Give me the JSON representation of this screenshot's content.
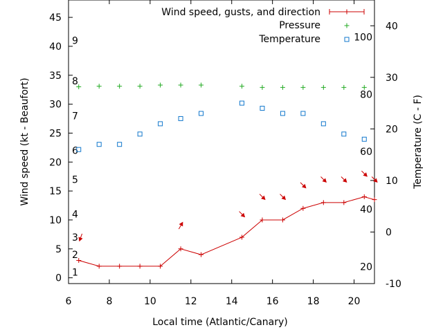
{
  "chart_data": {
    "type": "line",
    "xlabel": "Local time (Atlantic/Canary)",
    "ylabel": "Wind speed (kt - Beaufort)",
    "y2label": "Temperature (C - F)",
    "xlim": [
      6,
      21
    ],
    "ylim": [
      -1,
      48
    ],
    "y2lim": [
      -10,
      45
    ],
    "xticks": [
      6,
      8,
      10,
      12,
      14,
      16,
      18,
      20
    ],
    "yticks": [
      0,
      5,
      10,
      15,
      20,
      25,
      30,
      35,
      40,
      45
    ],
    "y2ticks": [
      -10,
      0,
      10,
      20,
      30,
      40
    ],
    "beaufort_labels": [
      {
        "label": "1",
        "y": 1
      },
      {
        "label": "2",
        "y": 4
      },
      {
        "label": "3",
        "y": 7
      },
      {
        "label": "4",
        "y": 11
      },
      {
        "label": "5",
        "y": 17
      },
      {
        "label": "6",
        "y": 22
      },
      {
        "label": "7",
        "y": 28
      },
      {
        "label": "8",
        "y": 34
      },
      {
        "label": "9",
        "y": 41
      }
    ],
    "fahrenheit_labels": [
      {
        "label": "20",
        "y2": -6.7
      },
      {
        "label": "40",
        "y2": 4.4
      },
      {
        "label": "60",
        "y2": 15.6
      },
      {
        "label": "80",
        "y2": 26.7
      },
      {
        "label": "100",
        "y2": 37.8
      }
    ],
    "legend_position": "top-right",
    "grid": false,
    "colors": {
      "wind": "#cc0000",
      "pressure": "#22aa22",
      "temperature": "#1177cc"
    },
    "series": [
      {
        "name": "Wind speed, gusts, and direction",
        "x": [
          6.5,
          7.5,
          8.5,
          9.5,
          10.5,
          11.5,
          12.5,
          14.5,
          15.5,
          16.5,
          17.5,
          18.5,
          19.5,
          20.5,
          21
        ],
        "values": [
          3,
          2,
          2,
          2,
          2,
          5,
          4,
          7,
          10,
          10,
          12,
          13,
          13,
          14,
          13.5
        ]
      },
      {
        "name": "Pressure",
        "x": [
          6.5,
          7.5,
          8.5,
          9.5,
          10.5,
          11.5,
          12.5,
          14.5,
          15.5,
          16.5,
          17.5,
          18.5,
          19.5,
          20.5
        ],
        "values": [
          33,
          33.1,
          33.1,
          33.1,
          33.3,
          33.3,
          33.3,
          33.1,
          32.9,
          32.9,
          32.9,
          32.9,
          32.9,
          32.9
        ]
      },
      {
        "name": "Temperature",
        "x": [
          6.5,
          7.5,
          8.5,
          9.5,
          10.5,
          11.5,
          12.5,
          14.5,
          15.5,
          16.5,
          17.5,
          18.5,
          19.5,
          20.5
        ],
        "values2": [
          16,
          17,
          17,
          19,
          21,
          22,
          23,
          25,
          24,
          23,
          23,
          21,
          19,
          18
        ]
      }
    ],
    "wind_arrows": [
      {
        "x": 6.6,
        "y": 7,
        "dir": 250
      },
      {
        "x": 11.5,
        "y": 9,
        "dir": 60
      },
      {
        "x": 14.5,
        "y": 11,
        "dir": 315
      },
      {
        "x": 15.5,
        "y": 14,
        "dir": 315
      },
      {
        "x": 16.5,
        "y": 14,
        "dir": 315
      },
      {
        "x": 17.5,
        "y": 16,
        "dir": 315
      },
      {
        "x": 18.5,
        "y": 17,
        "dir": 315
      },
      {
        "x": 19.5,
        "y": 17,
        "dir": 315
      },
      {
        "x": 20.5,
        "y": 18,
        "dir": 315
      },
      {
        "x": 21,
        "y": 17,
        "dir": 315
      }
    ]
  }
}
